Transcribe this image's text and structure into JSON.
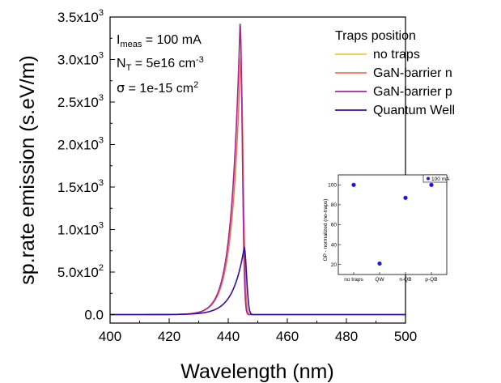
{
  "chart_data": [
    {
      "type": "line",
      "xlabel": "Wavelength (nm)",
      "ylabel": "sp.rate emission (s.eV/m)",
      "xlim": [
        400,
        500
      ],
      "ylim": [
        -100,
        3500
      ],
      "x_ticks": [
        400,
        420,
        440,
        460,
        480,
        500
      ],
      "x_tick_labels": [
        "400",
        "420",
        "440",
        "460",
        "480",
        "500"
      ],
      "y_ticks": [
        0,
        500,
        1000,
        1500,
        2000,
        2500,
        3000,
        3500
      ],
      "y_tick_labels": [
        {
          "mant": "0.0",
          "exp": ""
        },
        {
          "mant": "5.0x10",
          "exp": "2"
        },
        {
          "mant": "1.0x10",
          "exp": "3"
        },
        {
          "mant": "1.5x10",
          "exp": "3"
        },
        {
          "mant": "2.0x10",
          "exp": "3"
        },
        {
          "mant": "2.5x10",
          "exp": "3"
        },
        {
          "mant": "3.0x10",
          "exp": "3"
        },
        {
          "mant": "3.5x10",
          "exp": "3"
        }
      ],
      "annotations": {
        "line1": {
          "pre": "I",
          "sub": "meas",
          "post": " = 100 mA"
        },
        "line2": {
          "pre": "N",
          "sub": "T",
          "mid": " = 5e16 cm",
          "sup": "-3"
        },
        "line3": {
          "sym": "σ",
          "mid": " = 1e-15 cm",
          "sup": "2"
        }
      },
      "legend": {
        "title": "Traps position",
        "placement": "top-right"
      },
      "series": [
        {
          "name": "no traps",
          "color": "#f5c542",
          "peak_x": 444.0,
          "peak_y": 3420,
          "rise_w": 2.9,
          "fall_w": 1.05
        },
        {
          "name": "GaN-barrier n",
          "color": "#e8795a",
          "peak_x": 444.2,
          "peak_y": 3020,
          "rise_w": 3.0,
          "fall_w": 1.15
        },
        {
          "name": "GaN-barrier p",
          "color": "#a4279c",
          "peak_x": 444.0,
          "peak_y": 3420,
          "rise_w": 2.9,
          "fall_w": 1.05
        },
        {
          "name": "Quantum Well",
          "color": "#3a0c9e",
          "peak_x": 445.4,
          "peak_y": 790,
          "rise_w": 3.8,
          "fall_w": 1.1
        }
      ]
    },
    {
      "type": "scatter",
      "ylabel": "OP - normalized (no-traps)",
      "categories": [
        "no traps",
        "QW",
        "n-QB",
        "p-QB"
      ],
      "values": [
        100,
        21,
        87,
        100
      ],
      "ylim": [
        10,
        110
      ],
      "y_ticks": [
        20,
        40,
        60,
        80,
        100
      ],
      "legend": {
        "label": "100 mA",
        "placement": "top-right"
      },
      "color": "#1a1adb"
    }
  ]
}
